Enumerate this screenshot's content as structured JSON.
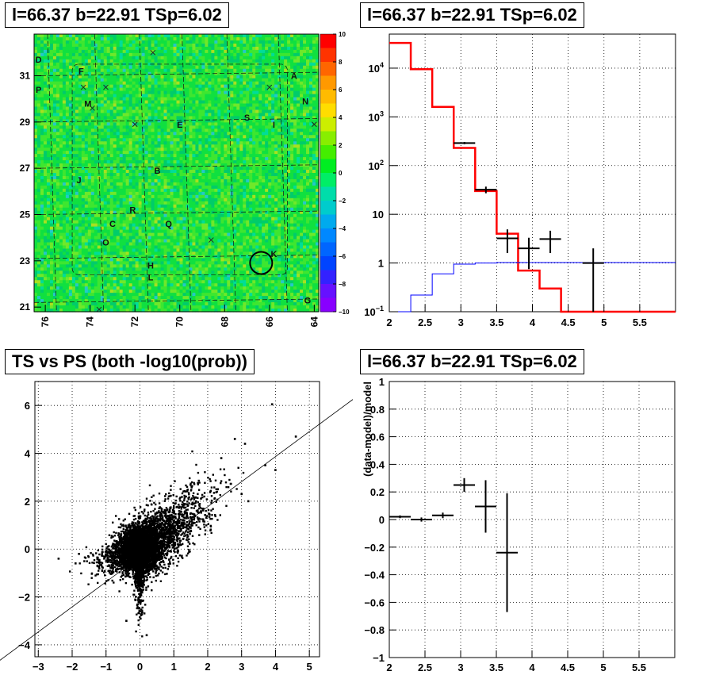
{
  "chart_data": [
    {
      "panel": "skymap",
      "type": "heatmap",
      "title": "l=66.37 b=22.91 TSp=6.02",
      "xlim": [
        76.5,
        63.8
      ],
      "ylim": [
        20.8,
        32.8
      ],
      "xticks": [
        "76",
        "74",
        "72",
        "70",
        "68",
        "66",
        "64"
      ],
      "yticks": [
        "21",
        "23",
        "25",
        "27",
        "29",
        "31"
      ],
      "colorbar": {
        "range": [
          -10,
          10
        ],
        "ticks": [
          "10",
          "8",
          "6",
          "4",
          "2",
          "0",
          "−2",
          "−4",
          "−6",
          "−8",
          "−10"
        ]
      },
      "source_labels": [
        {
          "t": "D",
          "l": 76.3,
          "b": 31.7
        },
        {
          "t": "F",
          "l": 74.4,
          "b": 31.2
        },
        {
          "t": "A",
          "l": 64.9,
          "b": 31.0
        },
        {
          "t": "P",
          "l": 76.3,
          "b": 30.4
        },
        {
          "t": "N",
          "l": 64.4,
          "b": 29.9
        },
        {
          "t": "M",
          "l": 74.1,
          "b": 29.8
        },
        {
          "t": "S",
          "l": 67.0,
          "b": 29.2
        },
        {
          "t": "E",
          "l": 70.0,
          "b": 28.9
        },
        {
          "t": "I",
          "l": 65.8,
          "b": 28.9
        },
        {
          "t": "B",
          "l": 71.0,
          "b": 26.9
        },
        {
          "t": "J",
          "l": 74.5,
          "b": 26.5
        },
        {
          "t": "R",
          "l": 72.1,
          "b": 25.2
        },
        {
          "t": "C",
          "l": 73.0,
          "b": 24.6
        },
        {
          "t": "Q",
          "l": 70.5,
          "b": 24.6
        },
        {
          "t": "O",
          "l": 73.3,
          "b": 23.8
        },
        {
          "t": "K",
          "l": 65.8,
          "b": 23.3
        },
        {
          "t": "H",
          "l": 71.3,
          "b": 22.8
        },
        {
          "t": "L",
          "l": 71.3,
          "b": 22.3
        },
        {
          "t": "G",
          "l": 64.3,
          "b": 21.3
        }
      ],
      "crosses": [
        [
          71.2,
          32.0
        ],
        [
          74.3,
          30.5
        ],
        [
          73.3,
          30.5
        ],
        [
          73.9,
          29.6
        ],
        [
          72.0,
          28.9
        ],
        [
          66.0,
          30.5
        ],
        [
          64.0,
          28.9
        ],
        [
          68.6,
          23.9
        ],
        [
          73.6,
          20.9
        ]
      ],
      "circle": {
        "l": 66.37,
        "b": 22.91
      }
    },
    {
      "panel": "spectrum",
      "type": "line",
      "title": "l=66.37 b=22.91 TSp=6.02",
      "xlim": [
        2,
        6
      ],
      "ylim": [
        0.1,
        50000
      ],
      "yscale": "log",
      "xticks": [
        "2",
        "2.5",
        "3",
        "3.5",
        "4",
        "4.5",
        "5",
        "5.5"
      ],
      "yticks": [
        "10^{-1}",
        "1",
        "10",
        "10^{2}",
        "10^{3}",
        "10^{4}"
      ],
      "series": [
        {
          "role": "model",
          "color": "#ff0000",
          "edges": [
            2.0,
            2.3,
            2.6,
            2.9,
            3.2,
            3.5,
            3.8,
            4.1,
            4.4,
            4.7,
            5.0,
            6.0
          ],
          "values": [
            33000,
            9500,
            1600,
            230,
            30,
            4,
            0.7,
            0.3,
            0.1,
            0.1,
            0.1
          ]
        },
        {
          "role": "background",
          "color": "#0000ff",
          "edges": [
            2.0,
            2.3,
            2.6,
            2.9,
            3.2,
            3.5,
            3.8,
            4.1,
            4.4,
            4.7,
            5.0,
            6.0
          ],
          "values": [
            0.1,
            0.22,
            0.6,
            0.95,
            1.0,
            1.02,
            1.02,
            1.02,
            1.02,
            1.02,
            1.02
          ]
        },
        {
          "role": "data",
          "color": "#000000",
          "points": [
            {
              "x": 3.05,
              "y": 290,
              "xerr": 0.15,
              "ylo": 275,
              "yhi": 305
            },
            {
              "x": 3.35,
              "y": 32,
              "xerr": 0.15,
              "ylo": 27,
              "yhi": 37
            },
            {
              "x": 3.65,
              "y": 3.2,
              "xerr": 0.15,
              "ylo": 1.6,
              "yhi": 4.9
            },
            {
              "x": 3.95,
              "y": 2.0,
              "xerr": 0.15,
              "ylo": 0.75,
              "yhi": 3.3
            },
            {
              "x": 4.25,
              "y": 3.1,
              "xerr": 0.15,
              "ylo": 1.6,
              "yhi": 4.6
            },
            {
              "x": 4.85,
              "y": 1.0,
              "xerr": 0.15,
              "ylo": 0.1,
              "yhi": 2.0
            }
          ]
        }
      ]
    },
    {
      "panel": "ts-vs-ps",
      "type": "scatter",
      "title": "TS vs PS (both -log10(prob))",
      "xlim": [
        -3.1,
        5.3
      ],
      "ylim": [
        -4.5,
        7
      ],
      "xticks": [
        "−3",
        "−2",
        "−1",
        "0",
        "1",
        "2",
        "3",
        "4",
        "5"
      ],
      "yticks": [
        "−4",
        "−2",
        "0",
        "2",
        "4",
        "6"
      ],
      "cloud": {
        "n": 6000,
        "seed": 7
      },
      "outliers": [
        [
          3.9,
          6.05
        ],
        [
          4.6,
          4.7
        ],
        [
          3.7,
          3.5
        ],
        [
          4.0,
          3.3
        ],
        [
          3.1,
          4.4
        ],
        [
          2.4,
          3.8
        ],
        [
          2.8,
          4.6
        ],
        [
          3.0,
          2.3
        ],
        [
          3.2,
          2.0
        ],
        [
          2.3,
          2.5
        ],
        [
          -2.4,
          -0.4
        ],
        [
          -1.8,
          -0.2
        ],
        [
          -1.9,
          -0.6
        ],
        [
          0.2,
          -3.6
        ],
        [
          -0.4,
          -3.0
        ]
      ],
      "fit_line": {
        "slope": 1.05,
        "intercept": -0.05
      }
    },
    {
      "panel": "residuals",
      "type": "scatter",
      "title": "l=66.37 b=22.91 TSp=6.02",
      "ylabel": "(data-model)/model",
      "xlim": [
        2,
        6
      ],
      "ylim": [
        -1,
        1
      ],
      "xticks": [
        "2",
        "2.5",
        "3",
        "3.5",
        "4",
        "4.5",
        "5",
        "5.5"
      ],
      "yticks": [
        "−1",
        "−0.8",
        "−0.6",
        "−0.4",
        "−0.2",
        "0",
        "0.2",
        "0.4",
        "0.6",
        "0.8",
        "1"
      ],
      "points": [
        {
          "x": 2.15,
          "y": 0.02,
          "xerr": 0.15,
          "err": 0.01
        },
        {
          "x": 2.45,
          "y": 0.0,
          "xerr": 0.15,
          "err": 0.015
        },
        {
          "x": 2.75,
          "y": 0.03,
          "xerr": 0.15,
          "err": 0.02
        },
        {
          "x": 3.05,
          "y": 0.25,
          "xerr": 0.15,
          "err": 0.05
        },
        {
          "x": 3.35,
          "y": 0.095,
          "xerr": 0.15,
          "err": 0.19
        },
        {
          "x": 3.65,
          "y": -0.24,
          "xerr": 0.15,
          "err": 0.43
        }
      ]
    }
  ]
}
